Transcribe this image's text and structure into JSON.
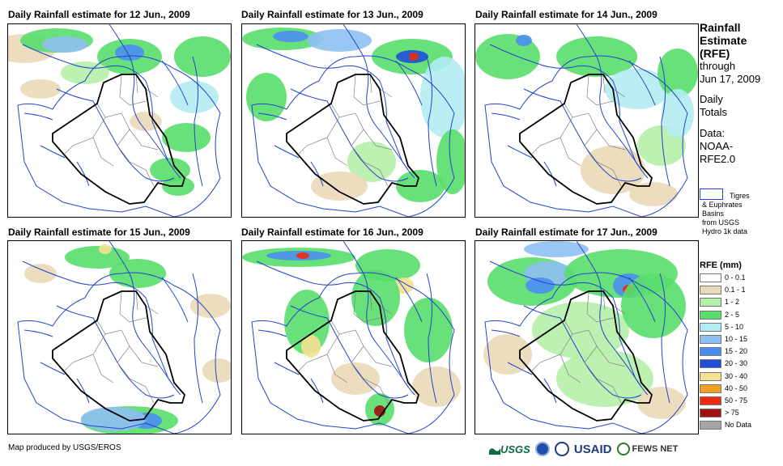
{
  "panels": [
    {
      "title": "Daily Rainfall estimate for 12 Jun., 2009",
      "day": 12
    },
    {
      "title": "Daily Rainfall estimate for 13 Jun., 2009",
      "day": 13
    },
    {
      "title": "Daily Rainfall estimate for 14 Jun., 2009",
      "day": 14
    },
    {
      "title": "Daily Rainfall estimate for 15 Jun., 2009",
      "day": 15
    },
    {
      "title": "Daily Rainfall estimate for 16 Jun., 2009",
      "day": 16
    },
    {
      "title": "Daily Rainfall estimate for 17 Jun., 2009",
      "day": 17
    }
  ],
  "sidebar": {
    "title_line1": "Rainfall",
    "title_line2": "Estimate",
    "title_line3": "(RFE)",
    "through": "through",
    "date": "Jun 17, 2009",
    "daily": "Daily",
    "totals": "Totals",
    "data_label": "Data:",
    "data_src1": "NOAA-",
    "data_src2": "RFE2.0",
    "basins_line1": "Tigres",
    "basins_line2": "& Euphrates",
    "basins_line3": "Basins",
    "basins_line4": "from USGS",
    "basins_line5": "Hydro 1k data",
    "legend_title": "RFE (mm)"
  },
  "legend": [
    {
      "label": "0 - 0.1",
      "color": "#ffffff"
    },
    {
      "label": "0.1 - 1",
      "color": "#ead9b8"
    },
    {
      "label": "1 - 2",
      "color": "#b5f0a8"
    },
    {
      "label": "2 - 5",
      "color": "#59de6c"
    },
    {
      "label": "5 - 10",
      "color": "#b2ecf2"
    },
    {
      "label": "10 - 15",
      "color": "#8fc0f2"
    },
    {
      "label": "15 - 20",
      "color": "#4a8ff0"
    },
    {
      "label": "20 - 30",
      "color": "#1f4fd8"
    },
    {
      "label": "30 - 40",
      "color": "#f5e191"
    },
    {
      "label": "40 - 50",
      "color": "#f2a020"
    },
    {
      "label": "50 - 75",
      "color": "#ee2a10"
    },
    {
      "label": "> 75",
      "color": "#a01010"
    },
    {
      "label": "No Data",
      "color": "#a5a5a5"
    }
  ],
  "footer": {
    "credit": "Map produced by USGS/EROS",
    "usgs": "USGS",
    "usaid": "USAID",
    "fewsnet": "FEWS NET"
  },
  "colors": {
    "river": "#2244cc",
    "border": "#000000",
    "admin": "#808080"
  }
}
